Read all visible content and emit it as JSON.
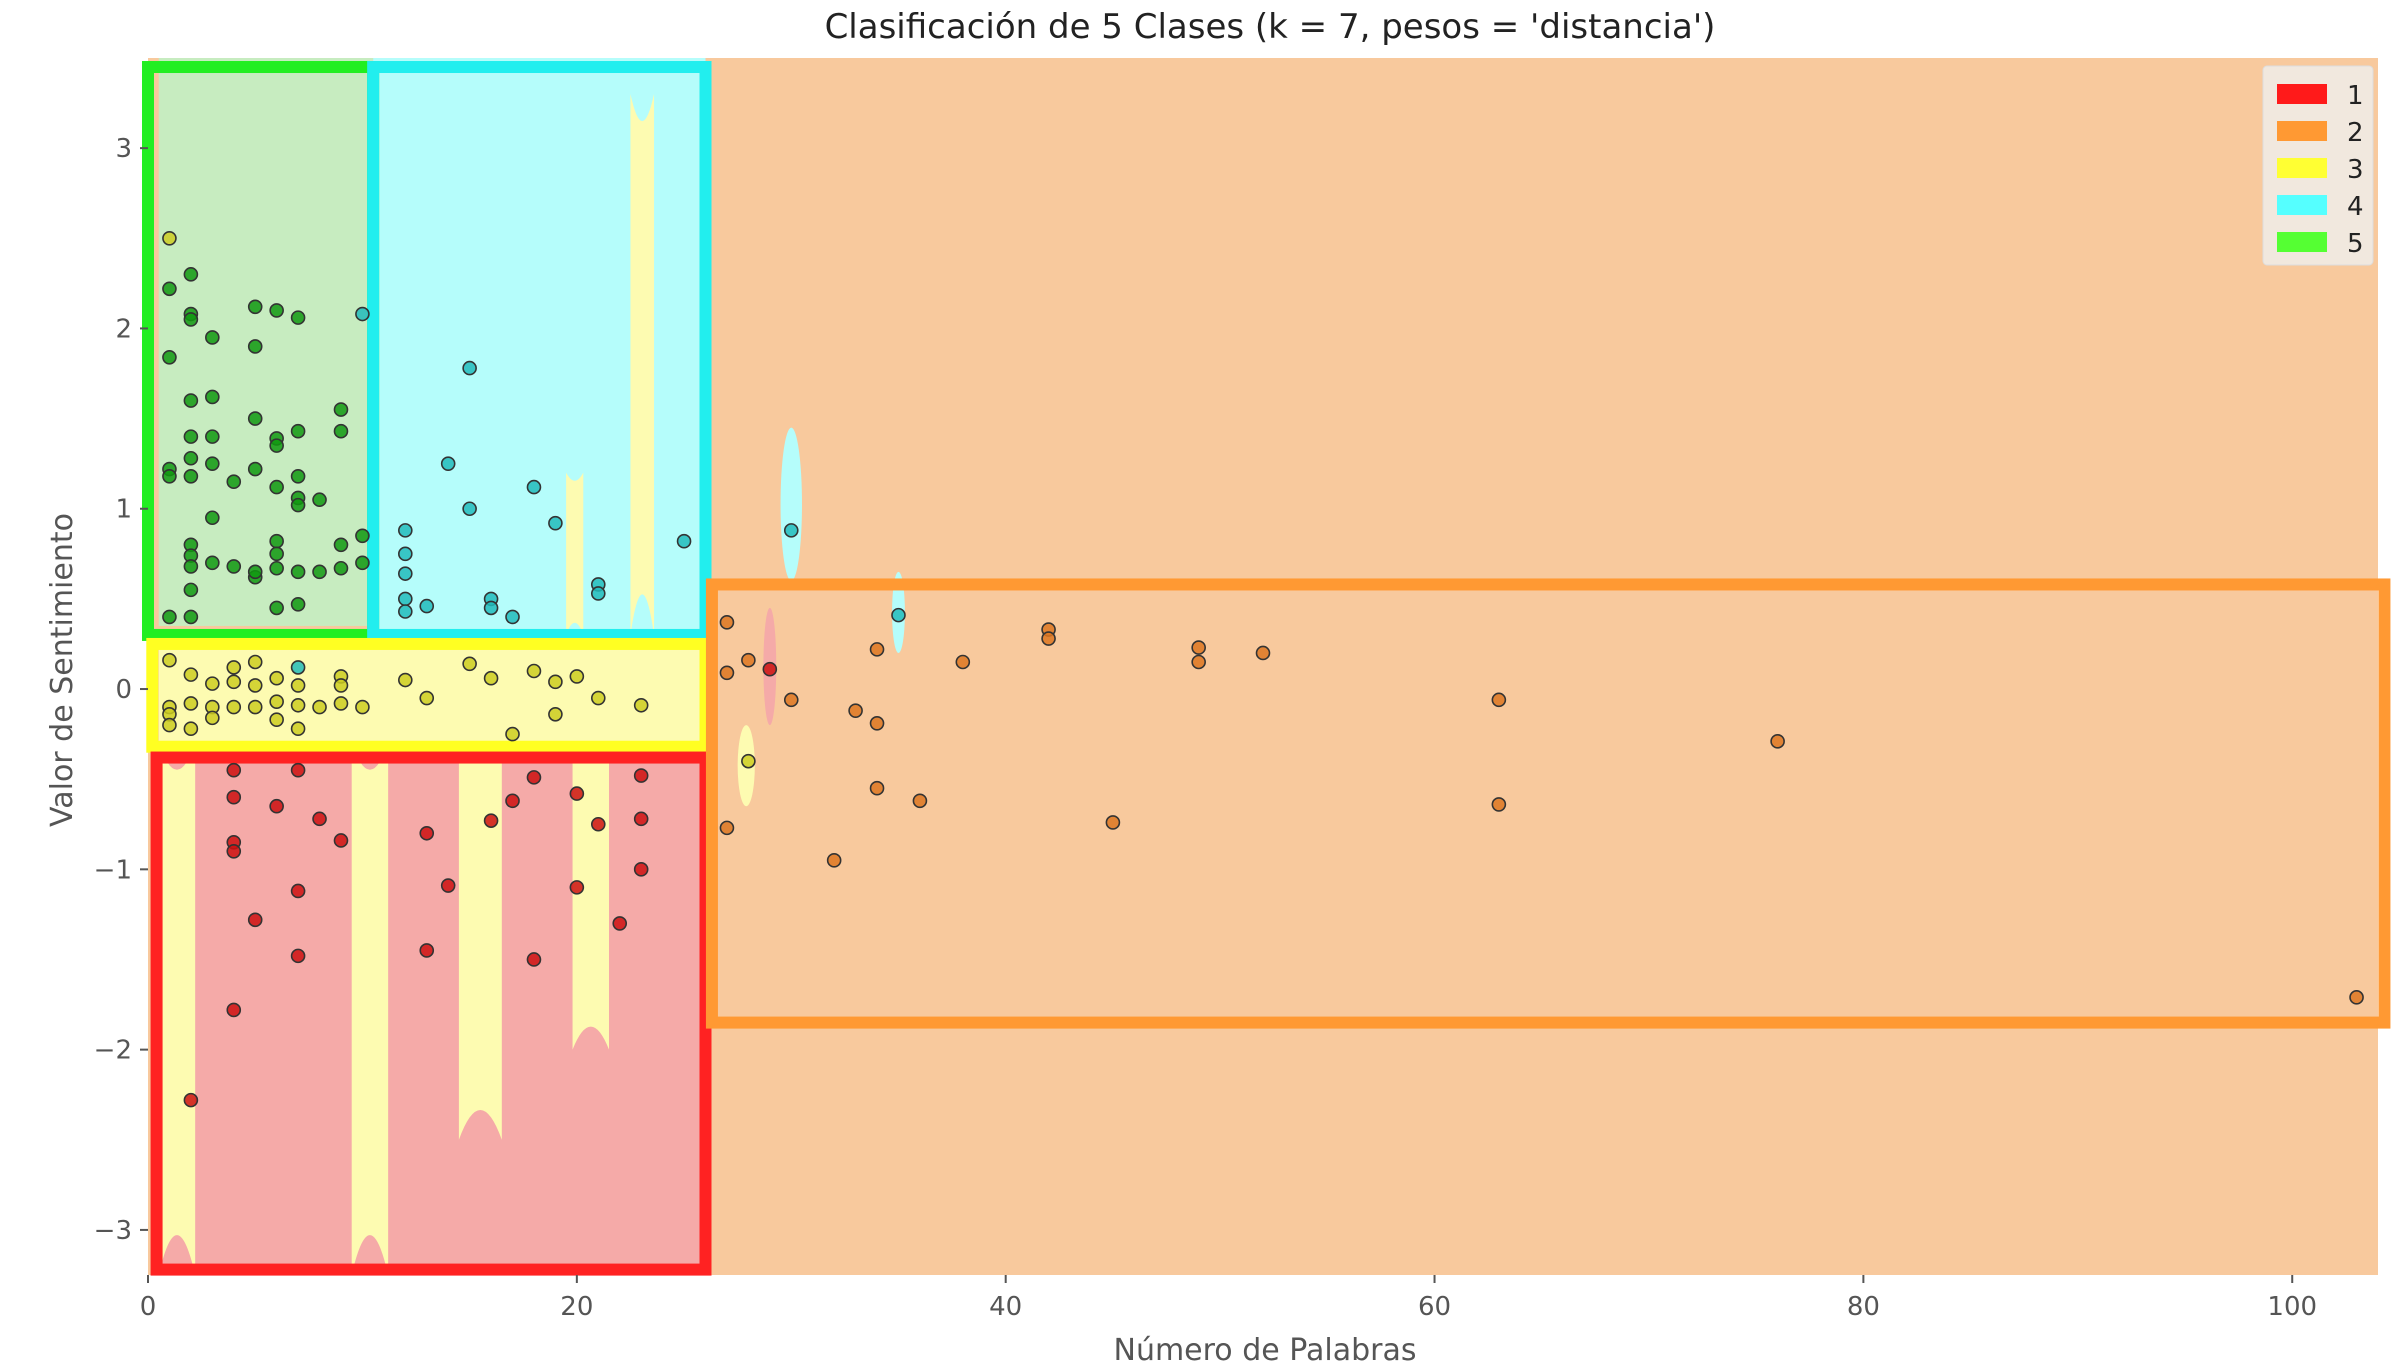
{
  "chart_data": {
    "type": "scatter",
    "title": "Clasificación de 5 Clases (k = 7, pesos = 'distancia')",
    "xlabel": "Número de Palabras",
    "ylabel": "Valor de Sentimiento",
    "xlim": [
      0,
      104
    ],
    "ylim": [
      -3.25,
      3.5
    ],
    "xticks": [
      0,
      20,
      40,
      60,
      80,
      100
    ],
    "yticks": [
      -3,
      -2,
      -1,
      0,
      1,
      2,
      3
    ],
    "xtick_labels": [
      "0",
      "20",
      "40",
      "60",
      "80",
      "100"
    ],
    "ytick_labels": [
      "−3",
      "−2",
      "−1",
      "0",
      "1",
      "2",
      "3"
    ],
    "grid": false,
    "legend_position": "top-right",
    "legend": [
      {
        "label": "1",
        "color": "#ff1a1a"
      },
      {
        "label": "2",
        "color": "#ff9933"
      },
      {
        "label": "3",
        "color": "#ffff33"
      },
      {
        "label": "4",
        "color": "#55ffff"
      },
      {
        "label": "5",
        "color": "#55ff33"
      }
    ],
    "background_region_colors": {
      "1": "#f5aaa8",
      "2": "#f8c99d",
      "3": "#fdfbb1",
      "4": "#b5fdfb",
      "5": "#c7ecc0"
    },
    "decision_regions": [
      {
        "class": "5",
        "x": [
          0.5,
          10.5
        ],
        "y": [
          0.35,
          3.5
        ]
      },
      {
        "class": "4",
        "x": [
          10.5,
          26
        ],
        "y": [
          0.3,
          3.5
        ]
      },
      {
        "class": "3",
        "x": [
          0.5,
          26
        ],
        "y": [
          -0.3,
          0.3
        ]
      },
      {
        "class": "1",
        "x": [
          0.5,
          26
        ],
        "y": [
          -3.25,
          -0.3
        ]
      },
      {
        "class": "4",
        "x": [
          29.5,
          30.5
        ],
        "y": [
          0.6,
          1.45
        ]
      },
      {
        "class": "4",
        "x": [
          34.7,
          35.3
        ],
        "y": [
          0.2,
          0.65
        ]
      },
      {
        "class": "1",
        "x": [
          28.7,
          29.3
        ],
        "y": [
          -0.2,
          0.45
        ]
      },
      {
        "class": "3",
        "x": [
          27.5,
          28.3
        ],
        "y": [
          -0.65,
          -0.2
        ]
      }
    ],
    "highlight_boxes": [
      {
        "class": "5",
        "color": "#22ee22",
        "x": [
          0,
          10.5
        ],
        "y": [
          0.3,
          3.45
        ]
      },
      {
        "class": "4",
        "color": "#22eeee",
        "x": [
          10.5,
          26
        ],
        "y": [
          0.3,
          3.45
        ]
      },
      {
        "class": "3",
        "color": "#ffff22",
        "x": [
          0.2,
          26
        ],
        "y": [
          -0.32,
          0.25
        ]
      },
      {
        "class": "1",
        "color": "#ff2222",
        "x": [
          0.4,
          26
        ],
        "y": [
          -3.22,
          -0.38
        ]
      },
      {
        "class": "2",
        "color": "#ff9933",
        "x": [
          26.3,
          104.3
        ],
        "y": [
          -1.85,
          0.58
        ]
      }
    ],
    "series": [
      {
        "name": "1",
        "color": "#cc1111",
        "points": [
          [
            2,
            -2.28
          ],
          [
            4,
            -0.45
          ],
          [
            4,
            -0.6
          ],
          [
            4,
            -0.85
          ],
          [
            4,
            -0.9
          ],
          [
            4,
            -1.78
          ],
          [
            5,
            -1.28
          ],
          [
            6,
            -0.65
          ],
          [
            7,
            -0.45
          ],
          [
            7,
            -1.12
          ],
          [
            7,
            -1.48
          ],
          [
            8,
            -0.72
          ],
          [
            9,
            -0.84
          ],
          [
            13,
            -0.8
          ],
          [
            13,
            -1.45
          ],
          [
            14,
            -1.09
          ],
          [
            16,
            -0.73
          ],
          [
            17,
            -0.62
          ],
          [
            18,
            -0.49
          ],
          [
            18,
            -1.5
          ],
          [
            20,
            -0.58
          ],
          [
            20,
            -1.1
          ],
          [
            21,
            -0.75
          ],
          [
            22,
            -1.3
          ],
          [
            23,
            -0.48
          ],
          [
            23,
            -0.72
          ],
          [
            23,
            -1.0
          ],
          [
            29,
            0.11
          ]
        ]
      },
      {
        "name": "2",
        "color": "#dd7722",
        "points": [
          [
            27,
            0.37
          ],
          [
            27,
            0.09
          ],
          [
            27,
            -0.77
          ],
          [
            28,
            0.16
          ],
          [
            30,
            -0.06
          ],
          [
            32,
            -0.95
          ],
          [
            33,
            -0.12
          ],
          [
            34,
            0.22
          ],
          [
            34,
            -0.19
          ],
          [
            34,
            -0.55
          ],
          [
            36,
            -0.62
          ],
          [
            38,
            0.15
          ],
          [
            42,
            0.33
          ],
          [
            42,
            0.28
          ],
          [
            45,
            -0.74
          ],
          [
            49,
            0.23
          ],
          [
            49,
            0.15
          ],
          [
            52,
            0.2
          ],
          [
            63,
            -0.06
          ],
          [
            63,
            -0.64
          ],
          [
            76,
            -0.29
          ],
          [
            103,
            -1.71
          ]
        ]
      },
      {
        "name": "3",
        "color": "#cccc22",
        "points": [
          [
            1,
            2.5
          ],
          [
            1,
            0.16
          ],
          [
            1,
            -0.1
          ],
          [
            1,
            -0.14
          ],
          [
            1,
            -0.2
          ],
          [
            2,
            0.08
          ],
          [
            2,
            -0.08
          ],
          [
            2,
            -0.22
          ],
          [
            3,
            0.03
          ],
          [
            3,
            -0.1
          ],
          [
            3,
            -0.16
          ],
          [
            4,
            0.12
          ],
          [
            4,
            0.04
          ],
          [
            4,
            -0.1
          ],
          [
            5,
            0.02
          ],
          [
            5,
            -0.1
          ],
          [
            5,
            0.15
          ],
          [
            6,
            0.06
          ],
          [
            6,
            -0.07
          ],
          [
            6,
            -0.17
          ],
          [
            7,
            0.02
          ],
          [
            7,
            -0.09
          ],
          [
            7,
            -0.22
          ],
          [
            8,
            -0.1
          ],
          [
            9,
            0.07
          ],
          [
            9,
            -0.08
          ],
          [
            9,
            0.02
          ],
          [
            10,
            -0.1
          ],
          [
            12,
            0.05
          ],
          [
            13,
            -0.05
          ],
          [
            15,
            0.14
          ],
          [
            16,
            0.06
          ],
          [
            17,
            -0.25
          ],
          [
            18,
            0.1
          ],
          [
            19,
            -0.14
          ],
          [
            19,
            0.04
          ],
          [
            20,
            0.07
          ],
          [
            21,
            -0.05
          ],
          [
            23,
            -0.09
          ],
          [
            28,
            -0.4
          ]
        ]
      },
      {
        "name": "4",
        "color": "#22bbbb",
        "points": [
          [
            7,
            0.12
          ],
          [
            10,
            2.08
          ],
          [
            12,
            0.88
          ],
          [
            12,
            0.75
          ],
          [
            12,
            0.64
          ],
          [
            12,
            0.5
          ],
          [
            12,
            0.43
          ],
          [
            13,
            0.46
          ],
          [
            14,
            1.25
          ],
          [
            15,
            1.78
          ],
          [
            15,
            1.0
          ],
          [
            16,
            0.5
          ],
          [
            16,
            0.45
          ],
          [
            17,
            0.4
          ],
          [
            18,
            1.12
          ],
          [
            19,
            0.92
          ],
          [
            21,
            0.58
          ],
          [
            21,
            0.53
          ],
          [
            25,
            0.82
          ],
          [
            30,
            0.88
          ],
          [
            35,
            0.41
          ]
        ]
      },
      {
        "name": "5",
        "color": "#119911",
        "points": [
          [
            1,
            2.22
          ],
          [
            1,
            1.84
          ],
          [
            1,
            1.22
          ],
          [
            1,
            1.18
          ],
          [
            1,
            0.4
          ],
          [
            2,
            2.3
          ],
          [
            2,
            2.08
          ],
          [
            2,
            2.05
          ],
          [
            2,
            1.6
          ],
          [
            2,
            1.4
          ],
          [
            2,
            1.28
          ],
          [
            2,
            1.18
          ],
          [
            2,
            0.8
          ],
          [
            2,
            0.74
          ],
          [
            2,
            0.68
          ],
          [
            2,
            0.55
          ],
          [
            2,
            0.4
          ],
          [
            3,
            1.95
          ],
          [
            3,
            1.62
          ],
          [
            3,
            1.4
          ],
          [
            3,
            1.25
          ],
          [
            3,
            0.95
          ],
          [
            3,
            0.7
          ],
          [
            4,
            1.15
          ],
          [
            4,
            0.68
          ],
          [
            5,
            2.12
          ],
          [
            5,
            1.9
          ],
          [
            5,
            1.5
          ],
          [
            5,
            1.22
          ],
          [
            5,
            0.62
          ],
          [
            5,
            0.65
          ],
          [
            6,
            2.1
          ],
          [
            6,
            1.39
          ],
          [
            6,
            1.35
          ],
          [
            6,
            1.12
          ],
          [
            6,
            0.82
          ],
          [
            6,
            0.75
          ],
          [
            6,
            0.67
          ],
          [
            6,
            0.45
          ],
          [
            7,
            2.06
          ],
          [
            7,
            1.43
          ],
          [
            7,
            1.18
          ],
          [
            7,
            1.06
          ],
          [
            7,
            1.02
          ],
          [
            7,
            0.65
          ],
          [
            7,
            0.47
          ],
          [
            8,
            1.05
          ],
          [
            8,
            0.65
          ],
          [
            9,
            1.55
          ],
          [
            9,
            1.43
          ],
          [
            9,
            0.8
          ],
          [
            9,
            0.67
          ],
          [
            10,
            0.85
          ],
          [
            10,
            0.7
          ]
        ]
      }
    ]
  }
}
